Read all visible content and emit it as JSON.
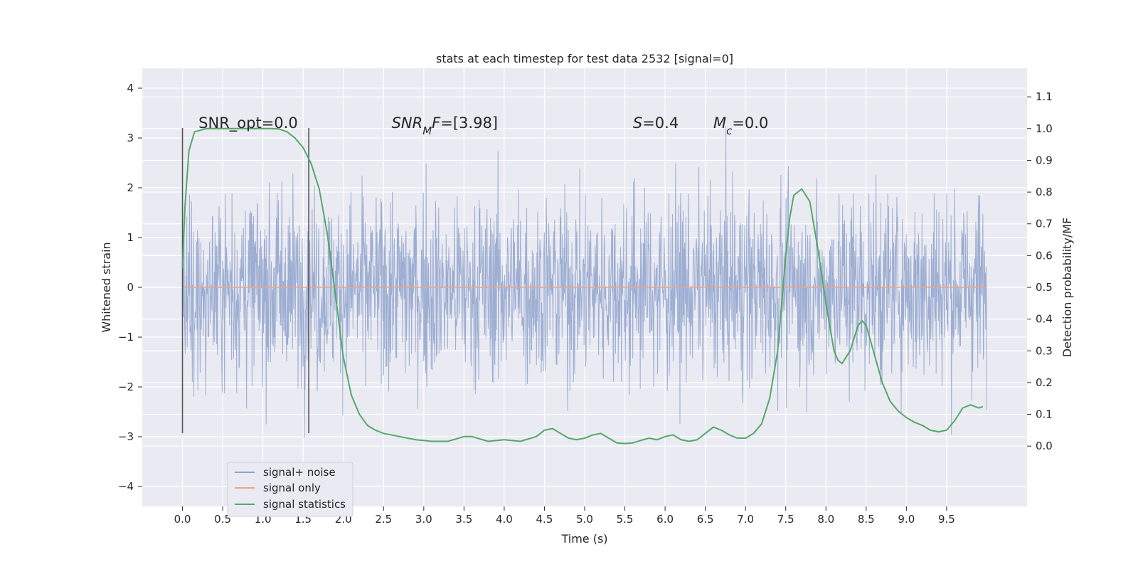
{
  "chart_data": {
    "type": "line",
    "title": "stats at each timestep for test data 2532 [signal=0]",
    "xlabel": "Time (s)",
    "ylabel_left": "Whitened strain",
    "ylabel_right": "Detection probability/MF",
    "xlim": [
      -0.5,
      10.5
    ],
    "ylim_left": [
      -4.4,
      4.4
    ],
    "ylim_right": [
      -0.19,
      1.19
    ],
    "x_ticks": [
      0.0,
      0.5,
      1.0,
      1.5,
      2.0,
      2.5,
      3.0,
      3.5,
      4.0,
      4.5,
      5.0,
      5.5,
      6.0,
      6.5,
      7.0,
      7.5,
      8.0,
      8.5,
      9.0,
      9.5
    ],
    "x_tick_labels": [
      "0.0",
      "0.5",
      "1.0",
      "1.5",
      "2.0",
      "2.5",
      "3.0",
      "3.5",
      "4.0",
      "4.5",
      "5.0",
      "5.5",
      "6.0",
      "6.5",
      "7.0",
      "7.5",
      "8.0",
      "8.5",
      "9.0",
      "9.5"
    ],
    "y_left_ticks": [
      4,
      3,
      2,
      1,
      0,
      -1,
      -2,
      -3,
      -4
    ],
    "y_left_tick_labels": [
      "4",
      "3",
      "2",
      "1",
      "0",
      "−1",
      "−2",
      "−3",
      "−4"
    ],
    "y_right_ticks": [
      1.1,
      1.0,
      0.9,
      0.8,
      0.7,
      0.6,
      0.5,
      0.4,
      0.3,
      0.2,
      0.1,
      0.0
    ],
    "y_right_tick_labels": [
      "1.1",
      "1.0",
      "0.9",
      "0.8",
      "0.7",
      "0.6",
      "0.5",
      "0.4",
      "0.3",
      "0.2",
      "0.1",
      "0.0"
    ],
    "grid": true,
    "legend_position": "lower-left",
    "annotations": [
      {
        "text": "SNR_opt=0.0",
        "x": 0.2,
        "y": 3.2,
        "italic": false
      },
      {
        "text": "SNR",
        "sub": "M",
        "tail": "F=[3.98]",
        "x": 2.6,
        "y": 3.2,
        "italic": true
      },
      {
        "text": "S",
        "tail": "=0.4",
        "x": 5.6,
        "y": 3.2,
        "italic": true
      },
      {
        "text": "M",
        "sub": "c",
        "tail": "=0.0",
        "x": 6.6,
        "y": 3.2,
        "italic": true
      }
    ],
    "vertical_lines": [
      {
        "x": 0.0,
        "ymin": -2.93,
        "ymax": 3.2
      },
      {
        "x": 1.57,
        "ymin": -2.93,
        "ymax": 3.2
      }
    ],
    "series": [
      {
        "name": "signal+ noise",
        "axis": "left",
        "color": "#8fa3cd",
        "x_range": [
          0.0,
          10.0
        ],
        "sample_count": 2048,
        "approx_band": [
          -1.7,
          1.4
        ],
        "approx_extremes": [
          -3.8,
          4.05
        ]
      },
      {
        "name": "signal only",
        "axis": "left",
        "color": "#e8a48a",
        "x": [
          0.0,
          10.0
        ],
        "values": [
          0.0,
          0.0
        ]
      },
      {
        "name": "signal statistics",
        "axis": "right",
        "color": "#55a868",
        "x": [
          0.0,
          0.03,
          0.08,
          0.15,
          0.3,
          0.5,
          0.8,
          1.0,
          1.1,
          1.2,
          1.3,
          1.4,
          1.5,
          1.6,
          1.7,
          1.8,
          1.9,
          2.0,
          2.1,
          2.2,
          2.3,
          2.4,
          2.5,
          2.7,
          2.9,
          3.1,
          3.3,
          3.5,
          3.6,
          3.8,
          4.0,
          4.2,
          4.4,
          4.5,
          4.6,
          4.7,
          4.8,
          4.9,
          5.0,
          5.1,
          5.2,
          5.3,
          5.4,
          5.5,
          5.6,
          5.7,
          5.8,
          5.9,
          6.0,
          6.1,
          6.2,
          6.3,
          6.4,
          6.5,
          6.6,
          6.7,
          6.8,
          6.9,
          7.0,
          7.1,
          7.2,
          7.3,
          7.4,
          7.5,
          7.55,
          7.6,
          7.7,
          7.8,
          7.9,
          8.0,
          8.1,
          8.15,
          8.2,
          8.25,
          8.3,
          8.4,
          8.45,
          8.5,
          8.6,
          8.7,
          8.8,
          8.9,
          9.0,
          9.1,
          9.2,
          9.3,
          9.4,
          9.5,
          9.6,
          9.7,
          9.8,
          9.9,
          9.95
        ],
        "values": [
          0.56,
          0.75,
          0.93,
          0.99,
          1.0,
          1.0,
          1.0,
          1.0,
          1.0,
          0.999,
          0.99,
          0.97,
          0.94,
          0.89,
          0.81,
          0.67,
          0.48,
          0.28,
          0.16,
          0.1,
          0.065,
          0.05,
          0.04,
          0.03,
          0.02,
          0.015,
          0.015,
          0.03,
          0.03,
          0.015,
          0.02,
          0.015,
          0.03,
          0.05,
          0.055,
          0.04,
          0.025,
          0.02,
          0.025,
          0.035,
          0.04,
          0.025,
          0.01,
          0.008,
          0.01,
          0.018,
          0.025,
          0.02,
          0.03,
          0.035,
          0.02,
          0.015,
          0.02,
          0.04,
          0.06,
          0.05,
          0.035,
          0.025,
          0.025,
          0.04,
          0.07,
          0.15,
          0.3,
          0.6,
          0.72,
          0.79,
          0.81,
          0.77,
          0.62,
          0.45,
          0.3,
          0.27,
          0.26,
          0.28,
          0.3,
          0.38,
          0.395,
          0.38,
          0.29,
          0.2,
          0.14,
          0.11,
          0.09,
          0.075,
          0.065,
          0.05,
          0.045,
          0.05,
          0.08,
          0.12,
          0.13,
          0.12,
          0.125
        ]
      }
    ]
  }
}
